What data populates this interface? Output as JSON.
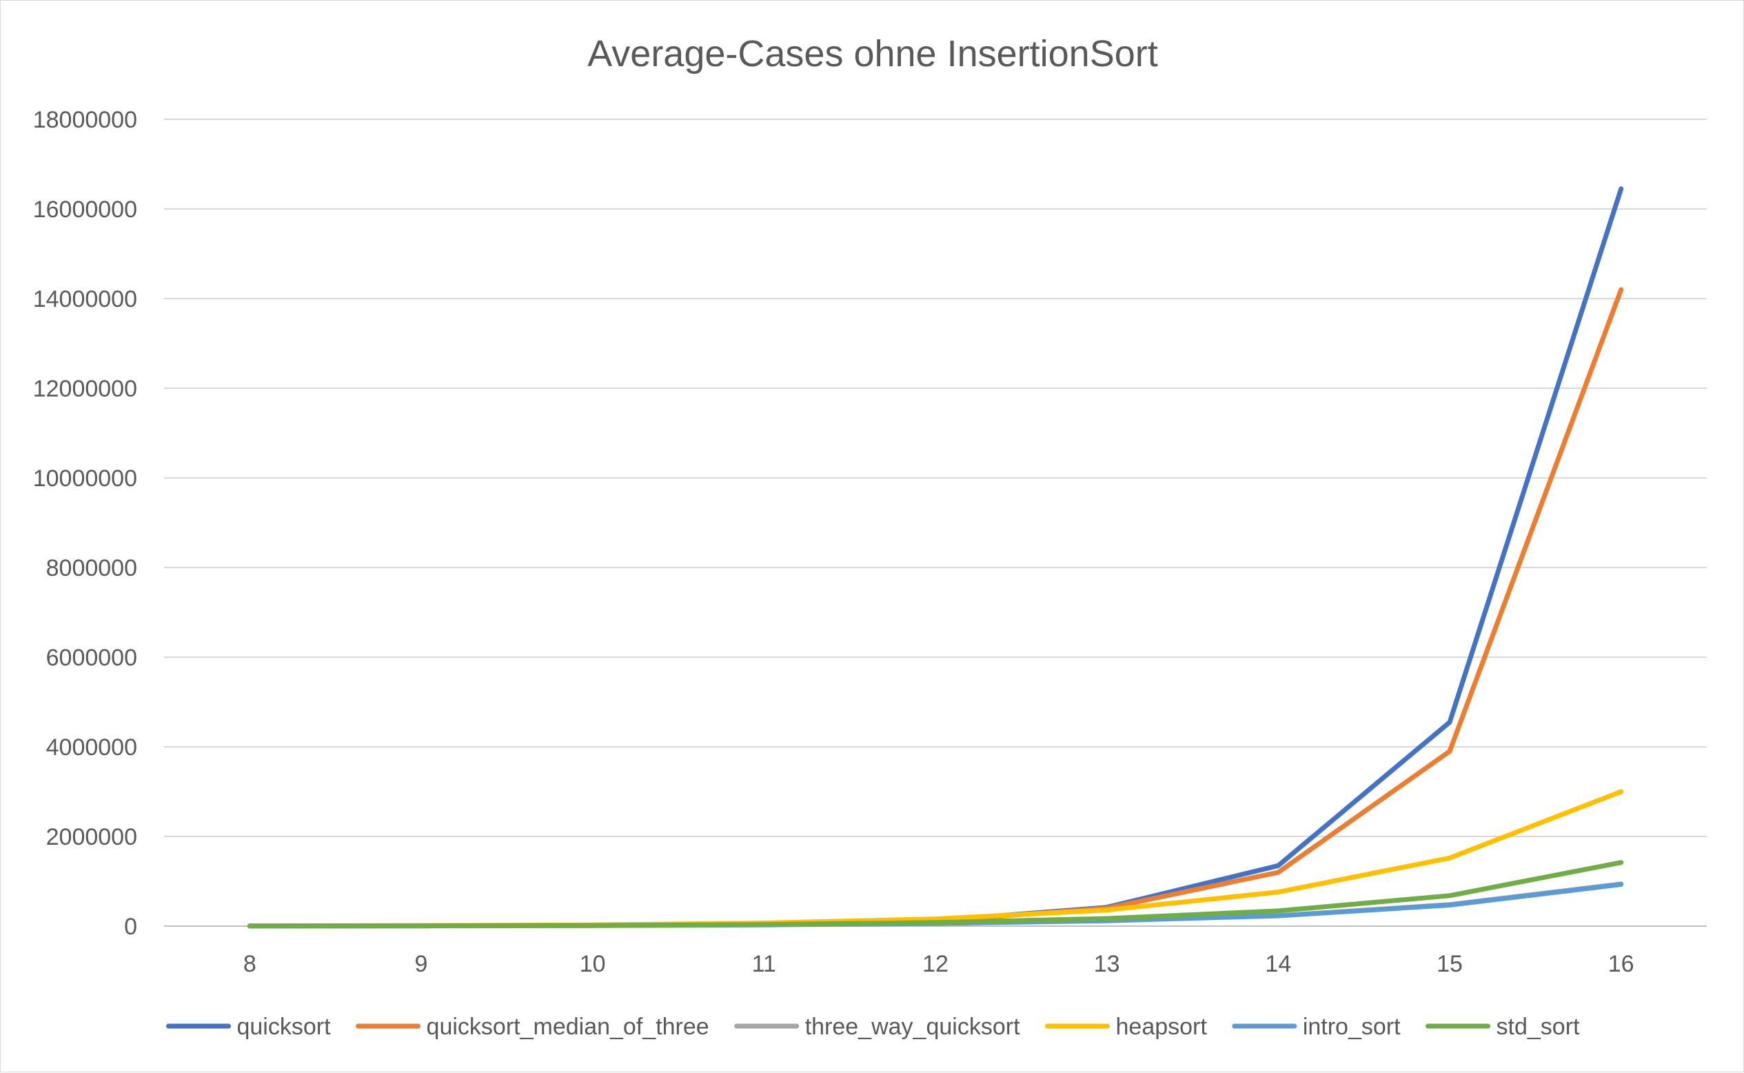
{
  "chart_data": {
    "type": "line",
    "title": "Average-Cases ohne InsertionSort",
    "xlabel": "",
    "ylabel": "",
    "categories": [
      "8",
      "9",
      "10",
      "11",
      "12",
      "13",
      "14",
      "15",
      "16"
    ],
    "ylim": [
      0,
      18000000
    ],
    "yticks": [
      0,
      2000000,
      4000000,
      6000000,
      8000000,
      10000000,
      12000000,
      14000000,
      16000000,
      18000000
    ],
    "ytick_labels": [
      "0",
      "2000000",
      "4000000",
      "6000000",
      "8000000",
      "10000000",
      "12000000",
      "14000000",
      "16000000",
      "18000000"
    ],
    "grid": true,
    "legend_position": "bottom",
    "series": [
      {
        "name": "quicksort",
        "color": "#4472C4",
        "values": [
          3500,
          9000,
          22000,
          52000,
          120000,
          420000,
          1350000,
          4550000,
          16450000
        ]
      },
      {
        "name": "quicksort_median_of_three",
        "color": "#ED7D31",
        "values": [
          3000,
          8000,
          20000,
          48000,
          115000,
          400000,
          1200000,
          3900000,
          14200000
        ]
      },
      {
        "name": "three_way_quicksort",
        "color": "#A5A5A5",
        "values": [
          2500,
          6000,
          14000,
          32000,
          70000,
          140000,
          230000,
          480000,
          940000
        ]
      },
      {
        "name": "heapsort",
        "color": "#FFC000",
        "values": [
          5000,
          12000,
          28000,
          70000,
          160000,
          360000,
          760000,
          1520000,
          3000000
        ]
      },
      {
        "name": "intro_sort",
        "color": "#5B9BD5",
        "values": [
          2000,
          5000,
          12000,
          28000,
          60000,
          120000,
          230000,
          470000,
          930000
        ]
      },
      {
        "name": "std_sort",
        "color": "#70AD47",
        "values": [
          2500,
          6000,
          14000,
          35000,
          80000,
          170000,
          340000,
          680000,
          1420000
        ]
      }
    ]
  }
}
